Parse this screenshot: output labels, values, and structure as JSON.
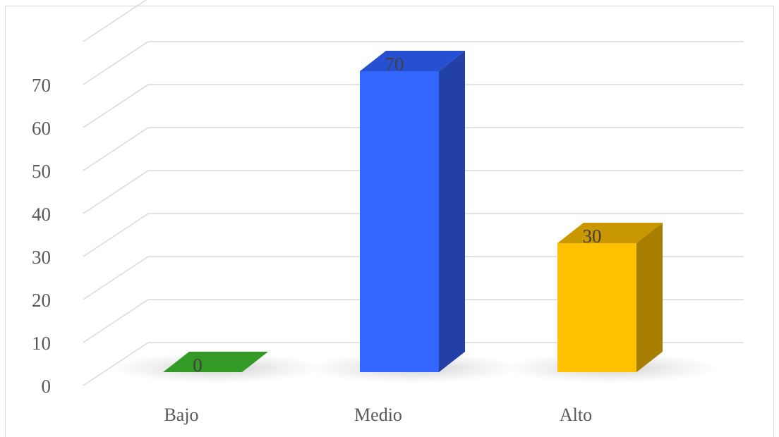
{
  "chart_data": {
    "type": "bar",
    "style": "3d-column",
    "categories": [
      "Bajo",
      "Medio",
      "Alto"
    ],
    "values": [
      0,
      70,
      30
    ],
    "data_labels": [
      "0",
      "70",
      "30"
    ],
    "colors": [
      "#339a26",
      "#3366ff",
      "#ffc000"
    ],
    "side_colors": [
      "#2a7d1f",
      "#2240a5",
      "#a87e00"
    ],
    "top_colors": [
      "#339a26",
      "#2650d2",
      "#c99700"
    ],
    "title": "",
    "xlabel": "",
    "ylabel": "",
    "ylim": [
      0,
      80
    ],
    "yticks": [
      0,
      10,
      20,
      30,
      40,
      50,
      60,
      70
    ],
    "grid": true,
    "legend": "none"
  }
}
